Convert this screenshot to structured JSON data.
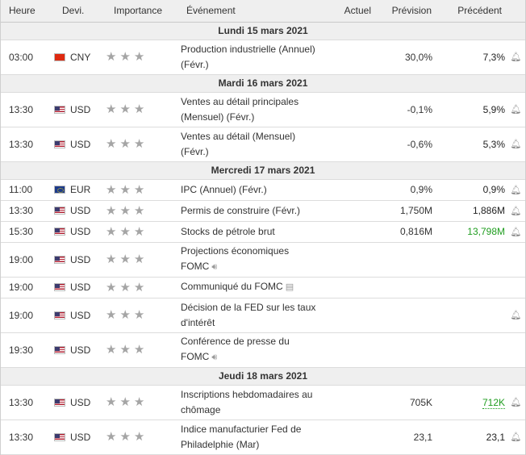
{
  "headers": {
    "time": "Heure",
    "currency": "Devi.",
    "importance": "Importance",
    "event": "Événement",
    "actual": "Actuel",
    "forecast": "Prévision",
    "previous": "Précédent"
  },
  "days": [
    {
      "label": "Lundi 15 mars 2021",
      "events": [
        {
          "time": "03:00",
          "flag": "cn",
          "currency": "CNY",
          "stars": 3,
          "name": "Production industrielle (Annuel)",
          "name2": "(Févr.)",
          "extra_icon": "",
          "actual": "",
          "forecast": "30,0%",
          "previous": "7,3%",
          "previous_color": "normal",
          "bell": true
        }
      ]
    },
    {
      "label": "Mardi 16 mars 2021",
      "events": [
        {
          "time": "13:30",
          "flag": "us",
          "currency": "USD",
          "stars": 3,
          "name": "Ventes au détail principales",
          "name2": "(Mensuel) (Févr.)",
          "extra_icon": "",
          "actual": "",
          "forecast": "-0,1%",
          "previous": "5,9%",
          "previous_color": "normal",
          "bell": true
        },
        {
          "time": "13:30",
          "flag": "us",
          "currency": "USD",
          "stars": 3,
          "name": "Ventes au détail (Mensuel)",
          "name2": "(Févr.)",
          "extra_icon": "",
          "actual": "",
          "forecast": "-0,6%",
          "previous": "5,3%",
          "previous_color": "normal",
          "bell": true
        }
      ]
    },
    {
      "label": "Mercredi 17 mars 2021",
      "events": [
        {
          "time": "11:00",
          "flag": "eu",
          "currency": "EUR",
          "stars": 3,
          "name": "IPC (Annuel) (Févr.)",
          "name2": "",
          "extra_icon": "",
          "actual": "",
          "forecast": "0,9%",
          "previous": "0,9%",
          "previous_color": "normal",
          "bell": true
        },
        {
          "time": "13:30",
          "flag": "us",
          "currency": "USD",
          "stars": 3,
          "name": "Permis de construire (Févr.)",
          "name2": "",
          "extra_icon": "",
          "actual": "",
          "forecast": "1,750M",
          "previous": "1,886M",
          "previous_color": "normal",
          "bell": true
        },
        {
          "time": "15:30",
          "flag": "us",
          "currency": "USD",
          "stars": 3,
          "name": "Stocks de pétrole brut",
          "name2": "",
          "extra_icon": "",
          "actual": "",
          "forecast": "0,816M",
          "previous": "13,798M",
          "previous_color": "green",
          "bell": true
        },
        {
          "time": "19:00",
          "flag": "us",
          "currency": "USD",
          "stars": 3,
          "name": "Projections économiques",
          "name2": "FOMC",
          "extra_icon": "speaker-icon",
          "actual": "",
          "forecast": "",
          "previous": "",
          "previous_color": "normal",
          "bell": false
        },
        {
          "time": "19:00",
          "flag": "us",
          "currency": "USD",
          "stars": 3,
          "name": "Communiqué du FOMC",
          "name2": "",
          "extra_icon": "document-icon",
          "actual": "",
          "forecast": "",
          "previous": "",
          "previous_color": "normal",
          "bell": false
        },
        {
          "time": "19:00",
          "flag": "us",
          "currency": "USD",
          "stars": 3,
          "name": "Décision de la FED sur les taux",
          "name2": "d'intérêt",
          "extra_icon": "",
          "actual": "",
          "forecast": "",
          "previous": "",
          "previous_color": "normal",
          "bell": true
        },
        {
          "time": "19:30",
          "flag": "us",
          "currency": "USD",
          "stars": 3,
          "name": "Conférence de presse du",
          "name2": "FOMC",
          "extra_icon": "speaker-icon",
          "actual": "",
          "forecast": "",
          "previous": "",
          "previous_color": "normal",
          "bell": false
        }
      ]
    },
    {
      "label": "Jeudi 18 mars 2021",
      "events": [
        {
          "time": "13:30",
          "flag": "us",
          "currency": "USD",
          "stars": 3,
          "name": "Inscriptions hebdomadaires au",
          "name2": "chômage",
          "extra_icon": "",
          "actual": "",
          "forecast": "705K",
          "previous": "712K",
          "previous_color": "green-dotted",
          "bell": true
        },
        {
          "time": "13:30",
          "flag": "us",
          "currency": "USD",
          "stars": 3,
          "name": "Indice manufacturier Fed de",
          "name2": "Philadelphie (Mar)",
          "extra_icon": "",
          "actual": "",
          "forecast": "23,1",
          "previous": "23,1",
          "previous_color": "normal",
          "bell": true
        }
      ]
    }
  ],
  "icons": {
    "star": "star-icon",
    "bell": "bell-icon"
  },
  "colors": {
    "header_bg": "#efefef",
    "green": "#1f9d1f",
    "star": "#a5a5a5"
  }
}
